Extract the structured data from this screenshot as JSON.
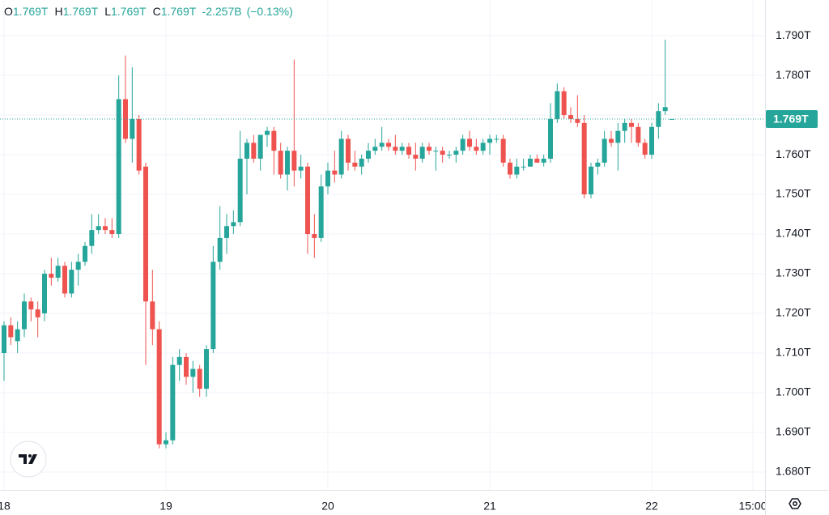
{
  "chart_data": {
    "type": "candlestick",
    "legend": [
      {
        "key": "O",
        "value": "1.769T"
      },
      {
        "key": "H",
        "value": "1.769T"
      },
      {
        "key": "L",
        "value": "1.769T"
      },
      {
        "key": "C",
        "value": "1.769T"
      }
    ],
    "change": "-2.257B",
    "change_percent": "(−0.13%)",
    "up_color": "#26a69a",
    "down_color": "#ef5350",
    "last_price": {
      "value": 1.769,
      "label": "1.769T"
    },
    "xlim": [
      -0.6,
      112.8
    ],
    "xticks": [
      {
        "value": 0,
        "label": "18"
      },
      {
        "value": 24,
        "label": "19"
      },
      {
        "value": 48,
        "label": "20"
      },
      {
        "value": 72,
        "label": "21"
      },
      {
        "value": 96,
        "label": "22"
      },
      {
        "value": 111,
        "label": "15:00"
      }
    ],
    "ylim": [
      1.6755,
      1.799
    ],
    "yticks": [
      {
        "value": 1.68,
        "label": "1.680T"
      },
      {
        "value": 1.69,
        "label": "1.690T"
      },
      {
        "value": 1.7,
        "label": "1.700T"
      },
      {
        "value": 1.71,
        "label": "1.710T"
      },
      {
        "value": 1.72,
        "label": "1.720T"
      },
      {
        "value": 1.73,
        "label": "1.730T"
      },
      {
        "value": 1.74,
        "label": "1.740T"
      },
      {
        "value": 1.75,
        "label": "1.750T"
      },
      {
        "value": 1.76,
        "label": "1.760T"
      },
      {
        "value": 1.77,
        "label": "1.770T"
      },
      {
        "value": 1.78,
        "label": "1.780T"
      },
      {
        "value": 1.79,
        "label": "1.790T"
      }
    ],
    "grid": true,
    "x": [
      0,
      1,
      2,
      3,
      4,
      5,
      6,
      7,
      8,
      9,
      10,
      11,
      12,
      13,
      14,
      15,
      16,
      17,
      18,
      19,
      20,
      21,
      22,
      23,
      24,
      25,
      26,
      27,
      28,
      29,
      30,
      31,
      32,
      33,
      34,
      35,
      36,
      37,
      38,
      39,
      40,
      41,
      42,
      43,
      44,
      45,
      46,
      47,
      48,
      49,
      50,
      51,
      52,
      53,
      54,
      55,
      56,
      57,
      58,
      59,
      60,
      61,
      62,
      63,
      64,
      65,
      66,
      67,
      68,
      69,
      70,
      71,
      72,
      73,
      74,
      75,
      76,
      77,
      78,
      79,
      80,
      81,
      82,
      83,
      84,
      85,
      86,
      87,
      88,
      89,
      90,
      91,
      92,
      93,
      94,
      95,
      96,
      97,
      98,
      99
    ],
    "values": [
      [
        1.71,
        1.718,
        1.703,
        1.717
      ],
      [
        1.717,
        1.719,
        1.712,
        1.714
      ],
      [
        1.713,
        1.718,
        1.71,
        1.716
      ],
      [
        1.716,
        1.725,
        1.714,
        1.723
      ],
      [
        1.723,
        1.724,
        1.718,
        1.721
      ],
      [
        1.721,
        1.723,
        1.714,
        1.719
      ],
      [
        1.72,
        1.731,
        1.718,
        1.73
      ],
      [
        1.73,
        1.734,
        1.727,
        1.729
      ],
      [
        1.729,
        1.734,
        1.728,
        1.732
      ],
      [
        1.732,
        1.733,
        1.724,
        1.725
      ],
      [
        1.725,
        1.733,
        1.724,
        1.731
      ],
      [
        1.731,
        1.735,
        1.727,
        1.733
      ],
      [
        1.733,
        1.738,
        1.732,
        1.737
      ],
      [
        1.737,
        1.745,
        1.735,
        1.741
      ],
      [
        1.741,
        1.745,
        1.74,
        1.742
      ],
      [
        1.742,
        1.744,
        1.74,
        1.741
      ],
      [
        1.741,
        1.744,
        1.739,
        1.74
      ],
      [
        1.74,
        1.78,
        1.739,
        1.774
      ],
      [
        1.774,
        1.785,
        1.763,
        1.764
      ],
      [
        1.764,
        1.782,
        1.758,
        1.769
      ],
      [
        1.769,
        1.77,
        1.755,
        1.756
      ],
      [
        1.757,
        1.758,
        1.707,
        1.723
      ],
      [
        1.723,
        1.731,
        1.712,
        1.716
      ],
      [
        1.716,
        1.718,
        1.686,
        1.687
      ],
      [
        1.687,
        1.69,
        1.686,
        1.688
      ],
      [
        1.688,
        1.709,
        1.687,
        1.707
      ],
      [
        1.707,
        1.711,
        1.703,
        1.709
      ],
      [
        1.709,
        1.71,
        1.702,
        1.704
      ],
      [
        1.704,
        1.708,
        1.7,
        1.706
      ],
      [
        1.706,
        1.707,
        1.699,
        1.701
      ],
      [
        1.701,
        1.712,
        1.699,
        1.711
      ],
      [
        1.711,
        1.737,
        1.71,
        1.733
      ],
      [
        1.733,
        1.747,
        1.731,
        1.739
      ],
      [
        1.739,
        1.745,
        1.735,
        1.742
      ],
      [
        1.742,
        1.746,
        1.74,
        1.743
      ],
      [
        1.743,
        1.766,
        1.742,
        1.759
      ],
      [
        1.759,
        1.764,
        1.75,
        1.763
      ],
      [
        1.763,
        1.765,
        1.758,
        1.759
      ],
      [
        1.759,
        1.765,
        1.756,
        1.765
      ],
      [
        1.765,
        1.767,
        1.762,
        1.766
      ],
      [
        1.766,
        1.767,
        1.755,
        1.761
      ],
      [
        1.761,
        1.763,
        1.754,
        1.755
      ],
      [
        1.755,
        1.762,
        1.751,
        1.761
      ],
      [
        1.761,
        1.784,
        1.752,
        1.756
      ],
      [
        1.756,
        1.76,
        1.754,
        1.757
      ],
      [
        1.757,
        1.758,
        1.735,
        1.74
      ],
      [
        1.74,
        1.745,
        1.734,
        1.739
      ],
      [
        1.739,
        1.755,
        1.738,
        1.752
      ],
      [
        1.752,
        1.758,
        1.75,
        1.756
      ],
      [
        1.756,
        1.761,
        1.753,
        1.755
      ],
      [
        1.755,
        1.766,
        1.754,
        1.764
      ],
      [
        1.764,
        1.765,
        1.756,
        1.758
      ],
      [
        1.758,
        1.761,
        1.756,
        1.757
      ],
      [
        1.757,
        1.76,
        1.755,
        1.759
      ],
      [
        1.759,
        1.763,
        1.758,
        1.761
      ],
      [
        1.761,
        1.764,
        1.76,
        1.762
      ],
      [
        1.762,
        1.767,
        1.761,
        1.763
      ],
      [
        1.763,
        1.764,
        1.761,
        1.762
      ],
      [
        1.762,
        1.765,
        1.76,
        1.761
      ],
      [
        1.761,
        1.763,
        1.76,
        1.762
      ],
      [
        1.762,
        1.763,
        1.759,
        1.76
      ],
      [
        1.76,
        1.763,
        1.756,
        1.759
      ],
      [
        1.759,
        1.763,
        1.758,
        1.762
      ],
      [
        1.762,
        1.763,
        1.76,
        1.761
      ],
      [
        1.761,
        1.762,
        1.756,
        1.761
      ],
      [
        1.761,
        1.762,
        1.758,
        1.76
      ],
      [
        1.76,
        1.761,
        1.759,
        1.76
      ],
      [
        1.76,
        1.762,
        1.758,
        1.761
      ],
      [
        1.761,
        1.765,
        1.76,
        1.764
      ],
      [
        1.764,
        1.766,
        1.761,
        1.762
      ],
      [
        1.762,
        1.764,
        1.76,
        1.761
      ],
      [
        1.761,
        1.764,
        1.76,
        1.763
      ],
      [
        1.763,
        1.765,
        1.76,
        1.764
      ],
      [
        1.764,
        1.765,
        1.763,
        1.764
      ],
      [
        1.764,
        1.765,
        1.757,
        1.758
      ],
      [
        1.758,
        1.759,
        1.754,
        1.755
      ],
      [
        1.755,
        1.759,
        1.754,
        1.757
      ],
      [
        1.757,
        1.759,
        1.756,
        1.757
      ],
      [
        1.757,
        1.76,
        1.757,
        1.759
      ],
      [
        1.759,
        1.76,
        1.758,
        1.758
      ],
      [
        1.758,
        1.76,
        1.757,
        1.759
      ],
      [
        1.759,
        1.773,
        1.758,
        1.769
      ],
      [
        1.769,
        1.778,
        1.768,
        1.776
      ],
      [
        1.776,
        1.777,
        1.769,
        1.77
      ],
      [
        1.77,
        1.772,
        1.768,
        1.769
      ],
      [
        1.769,
        1.775,
        1.767,
        1.768
      ],
      [
        1.768,
        1.77,
        1.749,
        1.75
      ],
      [
        1.75,
        1.758,
        1.749,
        1.757
      ],
      [
        1.757,
        1.759,
        1.755,
        1.758
      ],
      [
        1.758,
        1.766,
        1.757,
        1.764
      ],
      [
        1.764,
        1.766,
        1.762,
        1.763
      ],
      [
        1.763,
        1.768,
        1.756,
        1.766
      ],
      [
        1.766,
        1.769,
        1.763,
        1.768
      ],
      [
        1.768,
        1.769,
        1.763,
        1.767
      ],
      [
        1.767,
        1.768,
        1.762,
        1.763
      ],
      [
        1.763,
        1.764,
        1.759,
        1.76
      ],
      [
        1.76,
        1.768,
        1.759,
        1.767
      ],
      [
        1.767,
        1.773,
        1.764,
        1.771
      ],
      [
        1.771,
        1.789,
        1.77,
        1.772
      ],
      [
        1.769,
        1.769,
        1.769,
        1.769
      ]
    ]
  }
}
